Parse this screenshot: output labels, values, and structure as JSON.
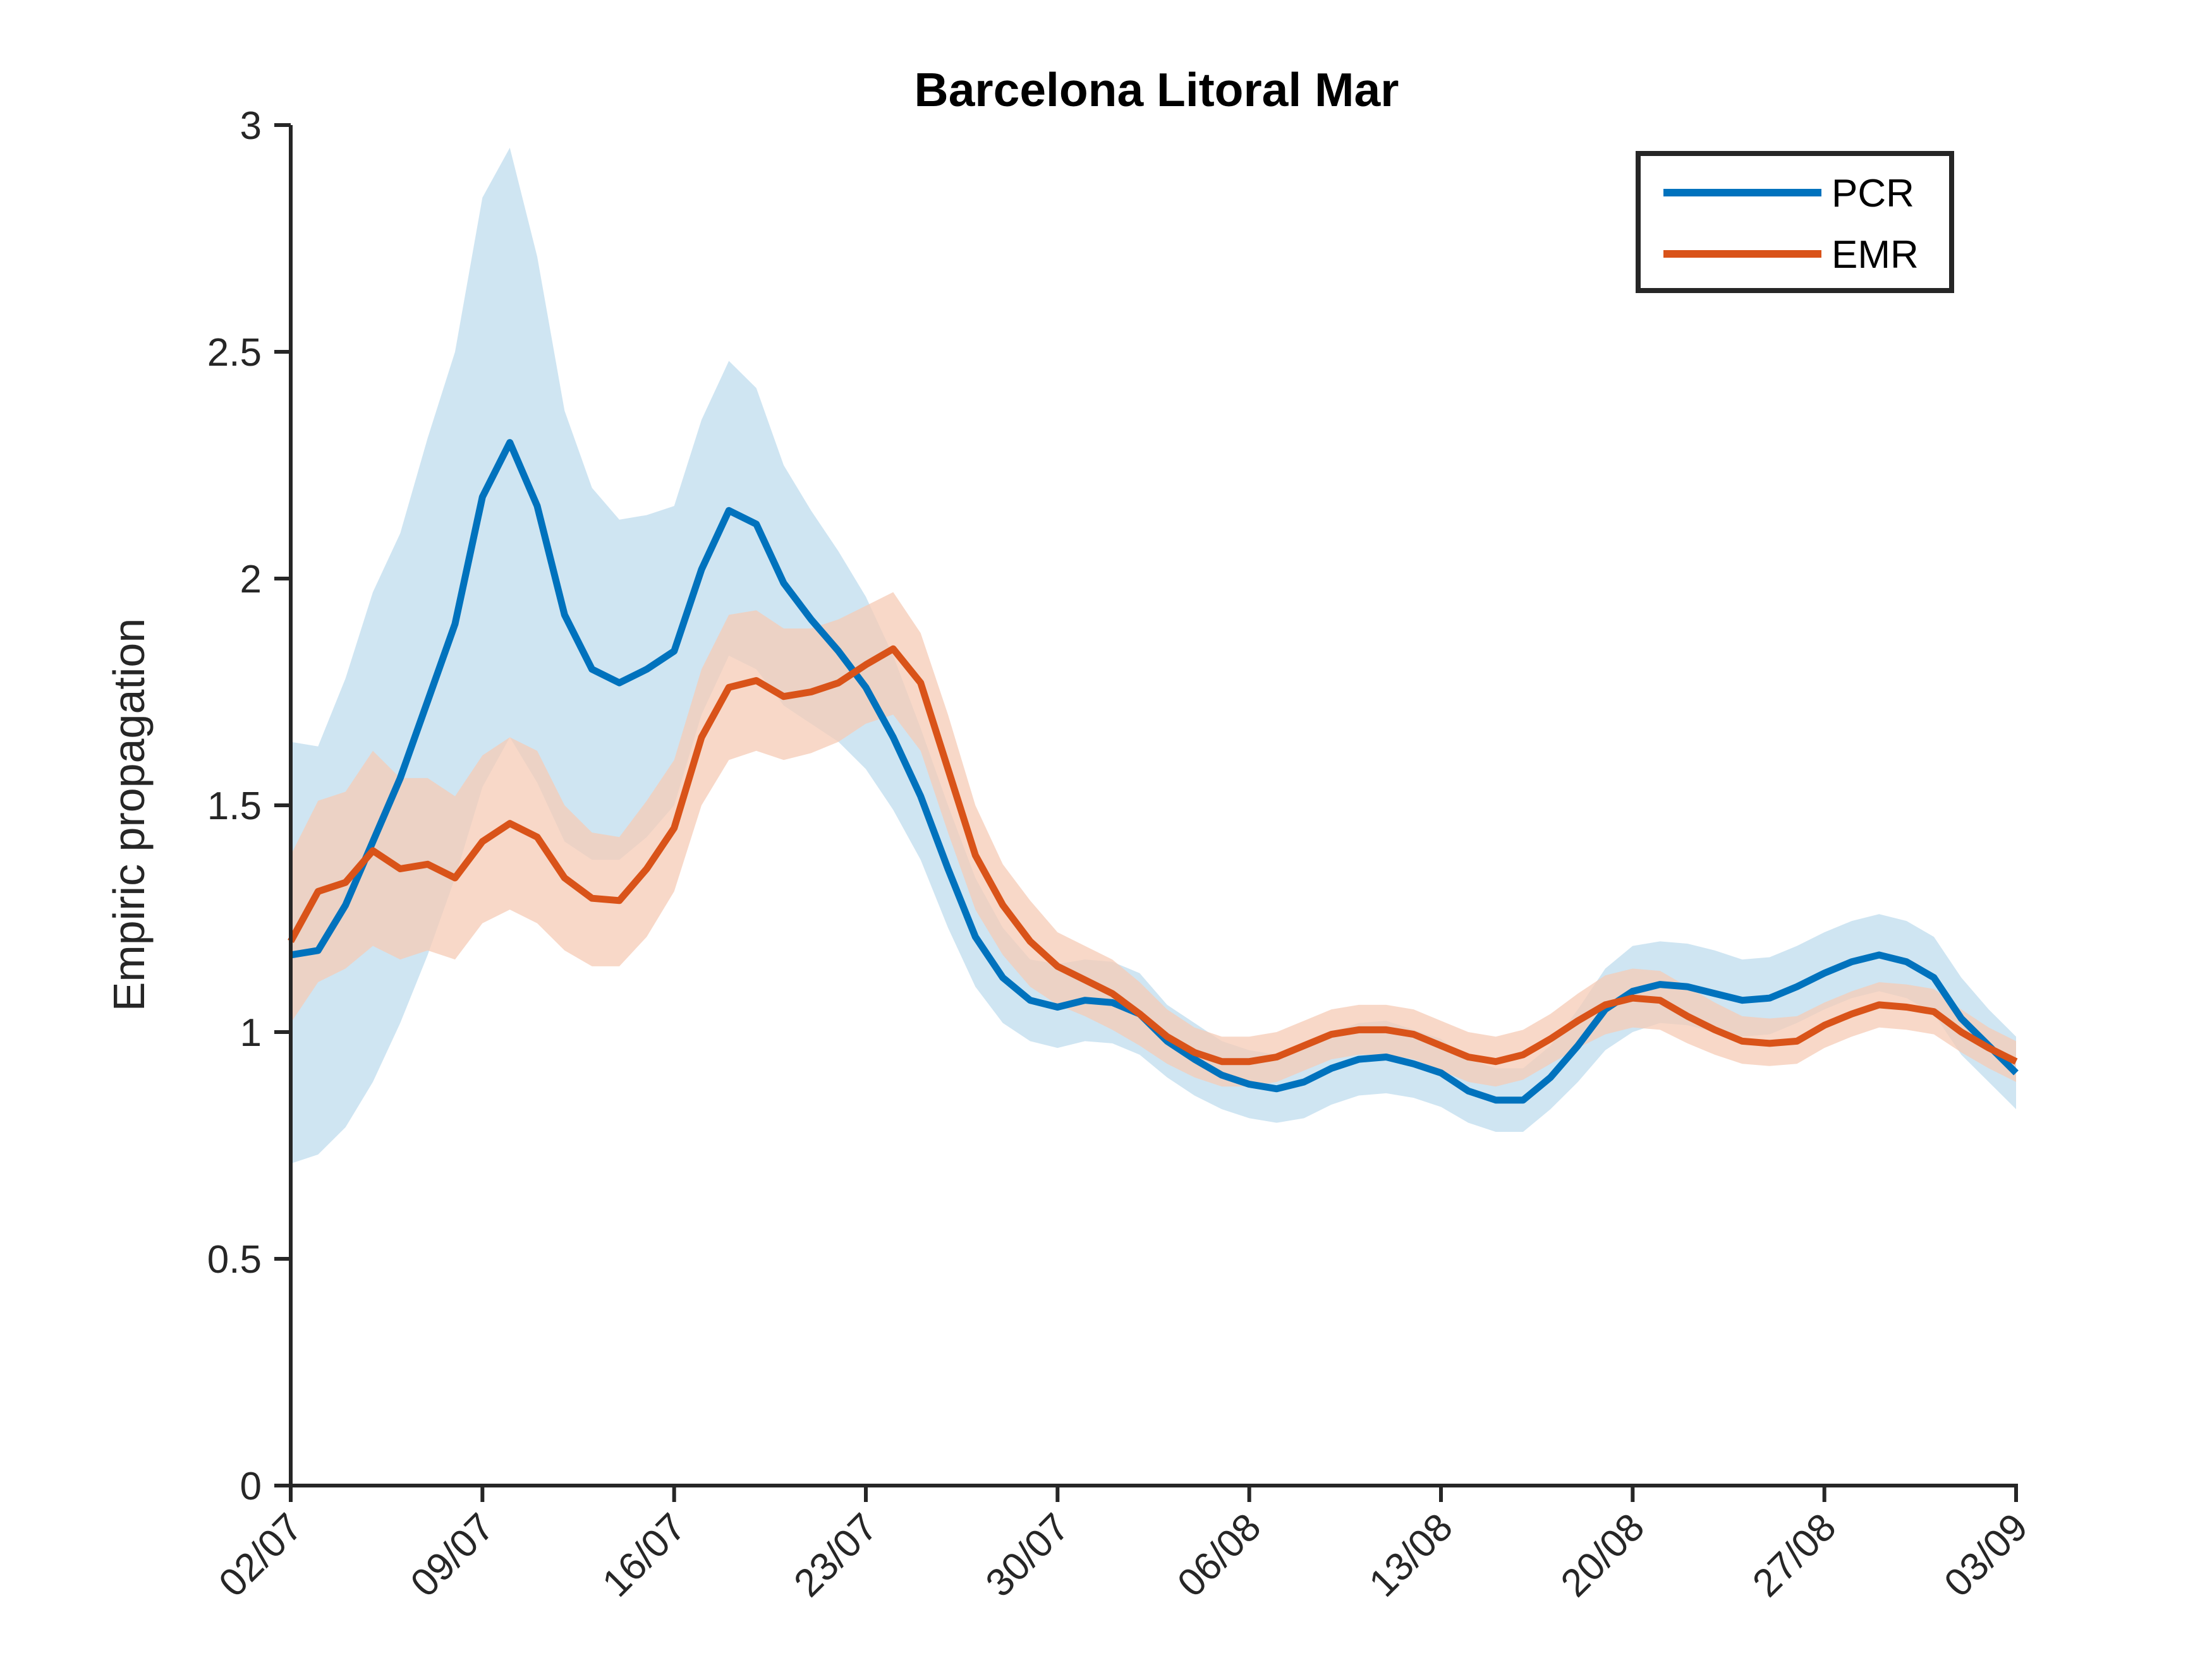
{
  "chart_data": {
    "type": "line",
    "title": "Barcelona Litoral Mar",
    "xlabel": "",
    "ylabel": "Empiric propagation",
    "ylim": [
      0,
      3
    ],
    "yticks": [
      0,
      0.5,
      1,
      1.5,
      2,
      2.5,
      3
    ],
    "yticklabels": [
      "0",
      "0.5",
      "1",
      "1.5",
      "2",
      "2.5",
      "3"
    ],
    "x_start": "02/07",
    "x_end": "03/09",
    "xticklabels": [
      "02/07",
      "09/07",
      "16/07",
      "23/07",
      "30/07",
      "06/08",
      "13/08",
      "20/08",
      "27/08",
      "03/09"
    ],
    "x": [
      "02/07",
      "03/07",
      "04/07",
      "05/07",
      "06/07",
      "07/07",
      "08/07",
      "09/07",
      "10/07",
      "11/07",
      "12/07",
      "13/07",
      "14/07",
      "15/07",
      "16/07",
      "17/07",
      "18/07",
      "19/07",
      "20/07",
      "21/07",
      "22/07",
      "23/07",
      "24/07",
      "25/07",
      "26/07",
      "27/07",
      "28/07",
      "29/07",
      "30/07",
      "31/07",
      "01/08",
      "02/08",
      "03/08",
      "04/08",
      "05/08",
      "06/08",
      "07/08",
      "08/08",
      "09/08",
      "10/08",
      "11/08",
      "12/08",
      "13/08",
      "14/08",
      "15/08",
      "16/08",
      "17/08",
      "18/08",
      "19/08",
      "20/08",
      "21/08",
      "22/08",
      "23/08",
      "24/08",
      "25/08",
      "26/08",
      "27/08",
      "28/08",
      "29/08",
      "30/08",
      "31/08",
      "01/09",
      "02/09",
      "03/09"
    ],
    "legend": {
      "position": "top-right",
      "entries": [
        "PCR",
        "EMR"
      ]
    },
    "grid": false,
    "series": [
      {
        "name": "PCR",
        "color": "#0072BD",
        "band_color": "#BFDCEE",
        "values": [
          1.17,
          1.18,
          1.28,
          1.42,
          1.56,
          1.73,
          1.9,
          2.18,
          2.3,
          2.16,
          1.92,
          1.8,
          1.77,
          1.8,
          1.84,
          2.02,
          2.15,
          2.12,
          1.99,
          1.91,
          1.84,
          1.76,
          1.65,
          1.52,
          1.36,
          1.21,
          1.12,
          1.07,
          1.055,
          1.07,
          1.065,
          1.04,
          0.98,
          0.94,
          0.905,
          0.885,
          0.875,
          0.89,
          0.92,
          0.94,
          0.945,
          0.93,
          0.91,
          0.87,
          0.85,
          0.85,
          0.9,
          0.97,
          1.05,
          1.09,
          1.105,
          1.1,
          1.085,
          1.07,
          1.075,
          1.1,
          1.13,
          1.155,
          1.17,
          1.155,
          1.12,
          1.03,
          0.97,
          0.91
        ],
        "lower": [
          0.71,
          0.73,
          0.79,
          0.89,
          1.02,
          1.17,
          1.34,
          1.54,
          1.65,
          1.55,
          1.42,
          1.38,
          1.38,
          1.43,
          1.5,
          1.7,
          1.83,
          1.8,
          1.72,
          1.68,
          1.64,
          1.58,
          1.49,
          1.38,
          1.23,
          1.1,
          1.02,
          0.98,
          0.965,
          0.98,
          0.975,
          0.95,
          0.9,
          0.86,
          0.83,
          0.81,
          0.8,
          0.81,
          0.84,
          0.86,
          0.865,
          0.855,
          0.835,
          0.8,
          0.78,
          0.78,
          0.83,
          0.89,
          0.96,
          1.0,
          1.02,
          1.015,
          1.0,
          0.99,
          0.995,
          1.02,
          1.05,
          1.075,
          1.09,
          1.075,
          1.04,
          0.95,
          0.89,
          0.83
        ],
        "upper": [
          1.64,
          1.63,
          1.78,
          1.97,
          2.1,
          2.31,
          2.5,
          2.84,
          2.95,
          2.71,
          2.37,
          2.2,
          2.13,
          2.14,
          2.16,
          2.35,
          2.48,
          2.42,
          2.25,
          2.15,
          2.06,
          1.96,
          1.83,
          1.67,
          1.5,
          1.34,
          1.23,
          1.16,
          1.15,
          1.16,
          1.155,
          1.13,
          1.06,
          1.02,
          0.98,
          0.96,
          0.95,
          0.97,
          1.0,
          1.02,
          1.025,
          1.005,
          0.985,
          0.94,
          0.92,
          0.92,
          0.97,
          1.05,
          1.14,
          1.19,
          1.2,
          1.195,
          1.18,
          1.16,
          1.165,
          1.19,
          1.22,
          1.245,
          1.26,
          1.245,
          1.21,
          1.12,
          1.05,
          0.99
        ]
      },
      {
        "name": "EMR",
        "color": "#D95319",
        "band_color": "#F5CBB6",
        "values": [
          1.2,
          1.31,
          1.33,
          1.4,
          1.36,
          1.37,
          1.34,
          1.42,
          1.46,
          1.43,
          1.34,
          1.295,
          1.29,
          1.36,
          1.45,
          1.65,
          1.76,
          1.775,
          1.74,
          1.75,
          1.77,
          1.81,
          1.845,
          1.77,
          1.58,
          1.39,
          1.28,
          1.2,
          1.145,
          1.115,
          1.085,
          1.04,
          0.99,
          0.955,
          0.935,
          0.935,
          0.945,
          0.97,
          0.995,
          1.005,
          1.005,
          0.995,
          0.97,
          0.945,
          0.935,
          0.95,
          0.985,
          1.025,
          1.06,
          1.075,
          1.07,
          1.035,
          1.005,
          0.98,
          0.975,
          0.98,
          1.015,
          1.04,
          1.06,
          1.055,
          1.045,
          1.0,
          0.965,
          0.935
        ],
        "lower": [
          1.02,
          1.11,
          1.14,
          1.19,
          1.16,
          1.18,
          1.16,
          1.24,
          1.27,
          1.24,
          1.18,
          1.145,
          1.145,
          1.21,
          1.31,
          1.5,
          1.6,
          1.62,
          1.6,
          1.615,
          1.64,
          1.68,
          1.7,
          1.62,
          1.44,
          1.27,
          1.17,
          1.1,
          1.06,
          1.035,
          1.005,
          0.97,
          0.93,
          0.9,
          0.88,
          0.88,
          0.89,
          0.915,
          0.94,
          0.95,
          0.95,
          0.94,
          0.915,
          0.89,
          0.88,
          0.895,
          0.93,
          0.965,
          0.995,
          1.01,
          1.005,
          0.975,
          0.95,
          0.93,
          0.925,
          0.93,
          0.965,
          0.99,
          1.01,
          1.005,
          0.995,
          0.955,
          0.92,
          0.89
        ],
        "upper": [
          1.39,
          1.51,
          1.53,
          1.62,
          1.56,
          1.56,
          1.52,
          1.61,
          1.65,
          1.62,
          1.5,
          1.44,
          1.43,
          1.51,
          1.6,
          1.8,
          1.92,
          1.93,
          1.89,
          1.89,
          1.91,
          1.94,
          1.97,
          1.88,
          1.7,
          1.5,
          1.37,
          1.29,
          1.22,
          1.19,
          1.16,
          1.11,
          1.05,
          1.01,
          0.99,
          0.99,
          1.0,
          1.025,
          1.05,
          1.06,
          1.06,
          1.05,
          1.025,
          1.0,
          0.99,
          1.005,
          1.04,
          1.085,
          1.125,
          1.14,
          1.135,
          1.1,
          1.065,
          1.035,
          1.03,
          1.035,
          1.065,
          1.09,
          1.11,
          1.105,
          1.095,
          1.05,
          1.01,
          0.98
        ]
      }
    ]
  }
}
